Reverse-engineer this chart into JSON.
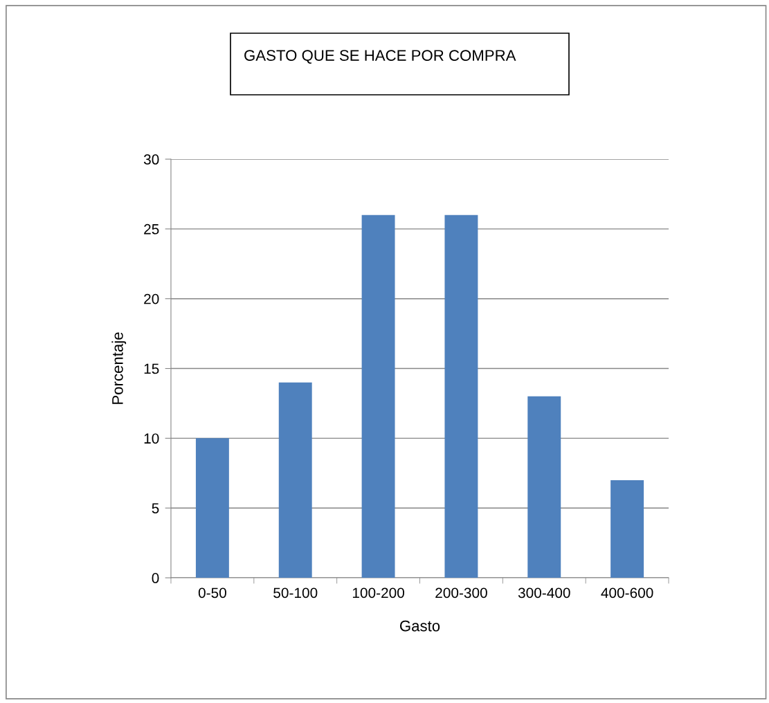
{
  "chart_data": {
    "type": "bar",
    "title": "GASTO QUE SE HACE POR COMPRA",
    "xlabel": "Gasto",
    "ylabel": "Porcentaje",
    "categories": [
      "0-50",
      "50-100",
      "100-200",
      "200-300",
      "300-400",
      "400-600"
    ],
    "values": [
      10,
      14,
      26,
      26,
      13,
      7
    ],
    "color": "#4f81bd",
    "ylim": [
      0,
      30
    ],
    "yticks": [
      0,
      5,
      10,
      15,
      20,
      25,
      30
    ],
    "grid": "y"
  }
}
